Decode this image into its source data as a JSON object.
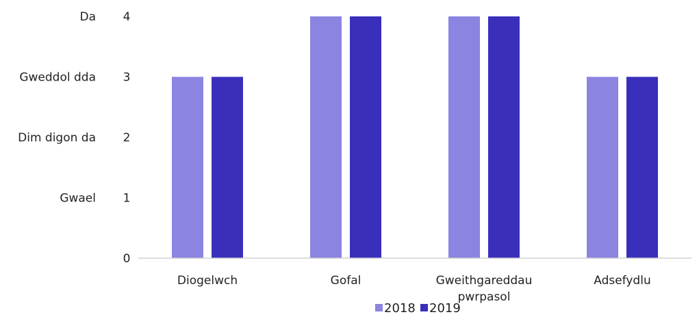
{
  "chart_data": {
    "type": "bar",
    "categories": [
      "Diogelwch",
      "Gofal",
      "Gweithgareddau pwrpasol",
      "Adsefydlu"
    ],
    "category_lines": [
      [
        "Diogelwch"
      ],
      [
        "Gofal"
      ],
      [
        "Gweithgareddau",
        "pwrpasol"
      ],
      [
        "Adsefydlu"
      ]
    ],
    "series": [
      {
        "name": "2018",
        "values": [
          3,
          4,
          4,
          3
        ],
        "color": "#8b84e0"
      },
      {
        "name": "2019",
        "values": [
          3,
          4,
          4,
          3
        ],
        "color": "#3a2fbb"
      }
    ],
    "ylim": [
      0,
      4
    ],
    "y_ticks": [
      "0",
      "1",
      "2",
      "3",
      "4"
    ],
    "y_rating_labels": [
      "",
      "Gwael",
      "Dim digon da",
      "Gweddol dda",
      "Da"
    ],
    "legend_position": "bottom",
    "grid": false,
    "axis_color": "#d0d0d0"
  }
}
